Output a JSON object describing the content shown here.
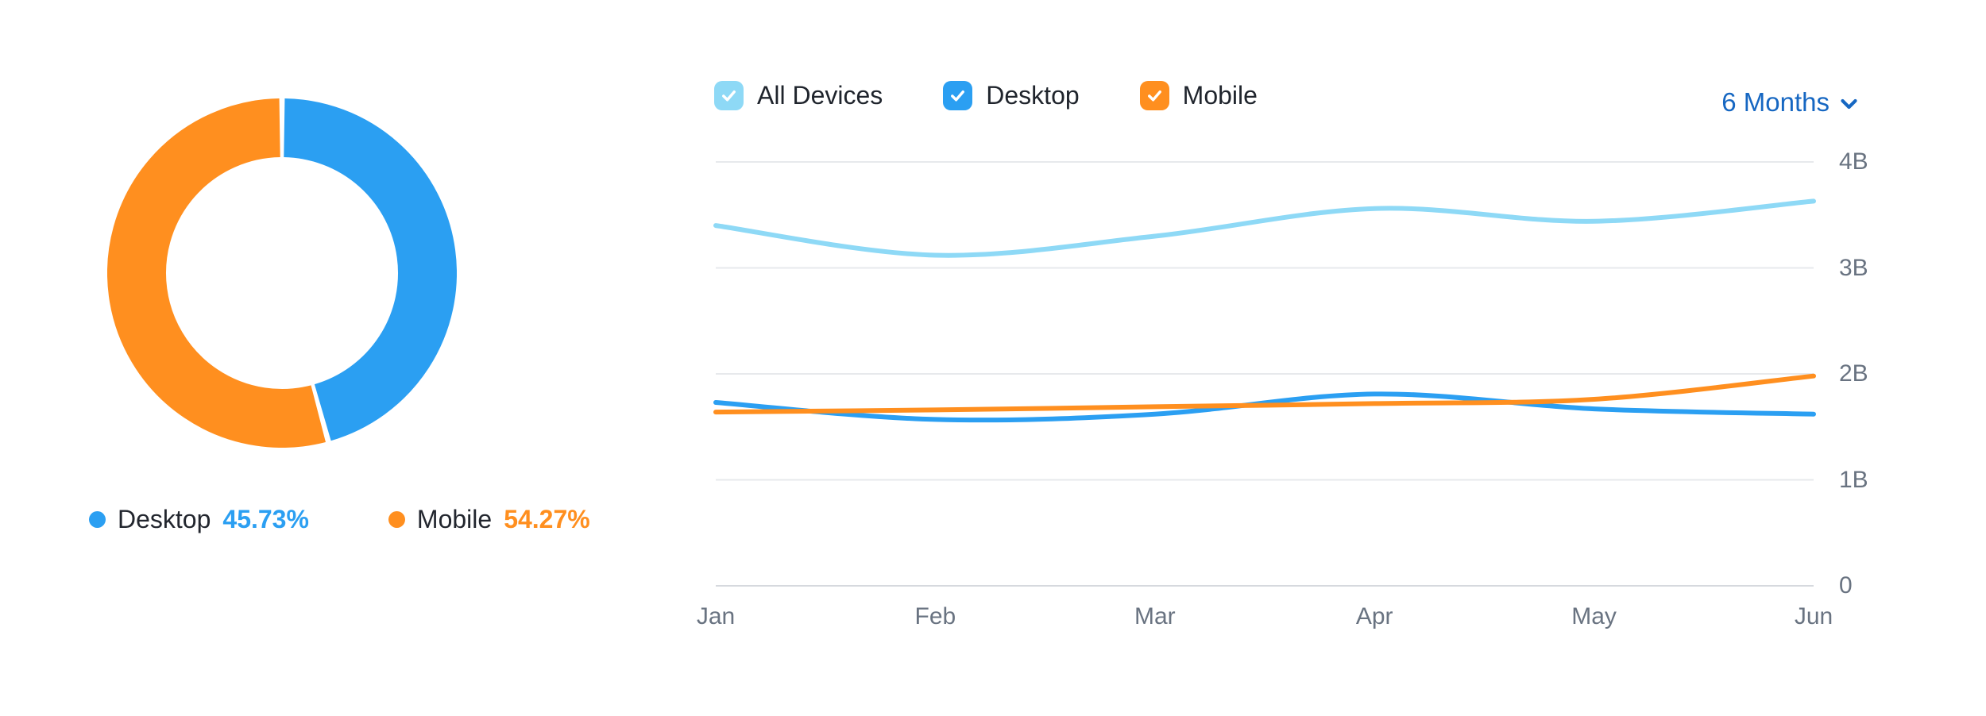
{
  "controls": {
    "series_toggles": [
      {
        "label": "All Devices",
        "checked": true
      },
      {
        "label": "Desktop",
        "checked": true
      },
      {
        "label": "Mobile",
        "checked": true
      }
    ],
    "range_selector": {
      "label": "6 Months",
      "color": "#1667C2"
    }
  },
  "chart_data": [
    {
      "type": "pie",
      "donut": true,
      "legend_position": "bottom",
      "slices": [
        {
          "label": "Desktop",
          "value": 45.73,
          "value_label": "45.73%",
          "color": "#2B9FF2"
        },
        {
          "label": "Mobile",
          "value": 54.27,
          "value_label": "54.27%",
          "color": "#FF8F1F"
        }
      ]
    },
    {
      "type": "line",
      "x": [
        "Jan",
        "Feb",
        "Mar",
        "Apr",
        "May",
        "Jun"
      ],
      "unit": "B",
      "series": [
        {
          "name": "All Devices",
          "color": "#8ED9F6",
          "values": [
            3.4,
            3.12,
            3.3,
            3.56,
            3.44,
            3.63
          ]
        },
        {
          "name": "Desktop",
          "color": "#2B9FF2",
          "values": [
            1.73,
            1.57,
            1.62,
            1.81,
            1.67,
            1.62
          ]
        },
        {
          "name": "Mobile",
          "color": "#FF8F1F",
          "values": [
            1.64,
            1.66,
            1.69,
            1.72,
            1.76,
            1.98
          ]
        }
      ],
      "ylim": [
        0,
        4
      ],
      "yticks": [
        {
          "value": 4,
          "label": "4B"
        },
        {
          "value": 3,
          "label": "3B"
        },
        {
          "value": 2,
          "label": "2B"
        },
        {
          "value": 1,
          "label": "1B"
        },
        {
          "value": 0,
          "label": "0"
        }
      ],
      "grid": true,
      "legend_position": "top"
    }
  ]
}
